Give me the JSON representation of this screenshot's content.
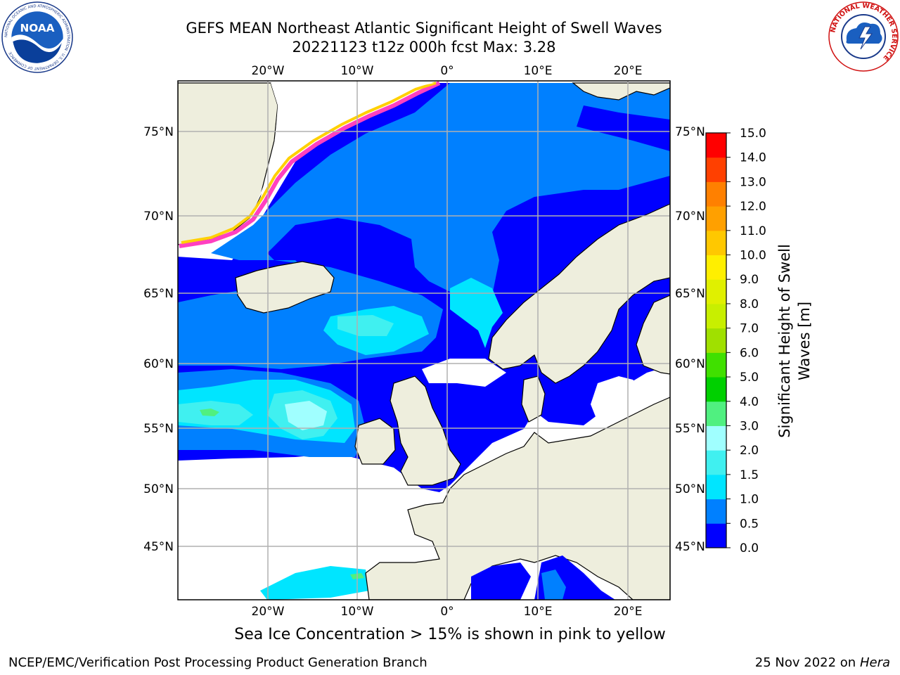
{
  "title": {
    "line1": "GEFS MEAN Northeast Atlantic Significant Height of Swell Waves",
    "line2": "20221123 t12z 000h fcst   Max: 3.28"
  },
  "map": {
    "lon_ticks": [
      "20°W",
      "10°W",
      "0°",
      "10°E",
      "20°E"
    ],
    "lat_ticks": [
      "75°N",
      "70°N",
      "65°N",
      "60°N",
      "55°N",
      "50°N",
      "45°N"
    ],
    "colors": {
      "land": "#eeeedd",
      "no_data": "#ffffff",
      "grid": "#b0b0b0"
    }
  },
  "colorbar": {
    "title_line1": "Significant Height of Swell",
    "title_line2": "Waves [m]",
    "ticks": [
      "15.0",
      "14.0",
      "13.0",
      "12.0",
      "11.0",
      "10.0",
      "9.0",
      "8.0",
      "7.0",
      "6.0",
      "5.0",
      "4.0",
      "3.0",
      "2.0",
      "1.5",
      "1.0",
      "0.5",
      "0.0"
    ],
    "colors_bottom_to_top": [
      "#0000ff",
      "#0080ff",
      "#00e5ff",
      "#40f0f0",
      "#a0ffff",
      "#50f080",
      "#00d000",
      "#40e000",
      "#a0e000",
      "#c8ef00",
      "#e0f000",
      "#ffef00",
      "#ffc800",
      "#ffa000",
      "#ff8000",
      "#ff4000",
      "#ff0000"
    ]
  },
  "footer": {
    "note": "Sea Ice Concentration > 15% is shown in pink to yellow",
    "credit_left": "NCEP/EMC/Verification Post Processing Product Generation Branch",
    "credit_date": "25 Nov 2022 on",
    "credit_host": "Hera"
  },
  "logos": {
    "noaa": "NOAA",
    "noaa_ring": "NATIONAL OCEANIC AND ATMOSPHERIC ADMINISTRATION · U.S. DEPARTMENT OF COMMERCE",
    "nws_ring": "NATIONAL WEATHER SERVICE"
  }
}
